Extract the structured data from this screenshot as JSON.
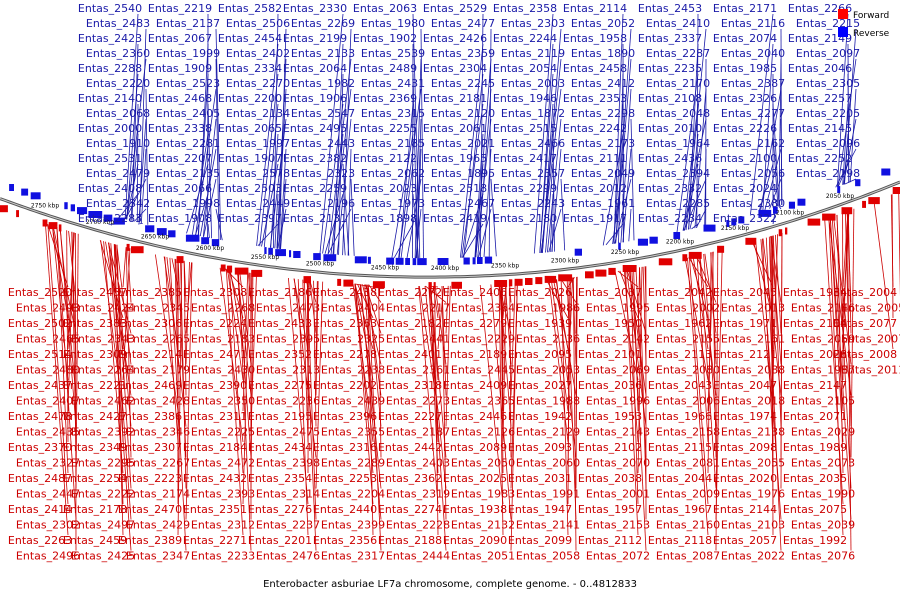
{
  "caption": "Enterobacter asburiae LF7a chromosome, complete genome. - 0..4812833",
  "legend": [
    {
      "label": "Forward",
      "color": "#ff0000"
    },
    {
      "label": "Reverse",
      "color": "#0000ff"
    }
  ],
  "colors": {
    "forward": "#e00000",
    "reverse": "#1010e0",
    "label_forward": "#cc0000",
    "label_reverse": "#1a1aa8"
  },
  "ticks": [
    "2750 kbp",
    "2700 kbp",
    "2650 kbp",
    "2600 kbp",
    "2550 kbp",
    "2500 kbp",
    "2450 kbp",
    "2400 kbp",
    "2350 kbp",
    "2300 kbp",
    "2250 kbp",
    "2200 kbp",
    "2150 kbp",
    "2100 kbp",
    "2050 kbp"
  ],
  "reverse_labels": [
    "Entas_2540",
    "Entas_2483",
    "Entas_2423",
    "Entas_2360",
    "Entas_2288",
    "Entas_2220",
    "Entas_2140",
    "Entas_2068",
    "Entas_2000",
    "Entas_1910",
    "Entas_2531",
    "Entas_2479",
    "Entas_2408",
    "Entas_2342",
    "Entas_2283",
    "Entas_2219",
    "Entas_2137",
    "Entas_2067",
    "Entas_1999",
    "Entas_1909",
    "Entas_2523",
    "Entas_2468",
    "Entas_2405",
    "Entas_2338",
    "Entas_2281",
    "Entas_2207",
    "Entas_2135",
    "Entas_2066",
    "Entas_1998",
    "Entas_1908",
    "Entas_2582",
    "Entas_2506",
    "Entas_2454",
    "Entas_2402",
    "Entas_2334",
    "Entas_2270",
    "Entas_2200",
    "Entas_2134",
    "Entas_2065",
    "Entas_1997",
    "Entas_1907",
    "Entas_2578",
    "Entas_2503",
    "Entas_2449",
    "Entas_2397",
    "Entas_2330",
    "Entas_2269",
    "Entas_2199",
    "Entas_2133",
    "Entas_2064",
    "Entas_1982",
    "Entas_1906",
    "Entas_2547",
    "Entas_2495",
    "Entas_2443",
    "Entas_2382",
    "Entas_2323",
    "Entas_2259",
    "Entas_2196",
    "Entas_2131",
    "Entas_2063",
    "Entas_1980",
    "Entas_1902",
    "Entas_2539",
    "Entas_2489",
    "Entas_2431",
    "Entas_2369",
    "Entas_2315",
    "Entas_2255",
    "Entas_2185",
    "Entas_2122",
    "Entas_2062",
    "Entas_2023",
    "Entas_1973",
    "Entas_1898",
    "Entas_2529",
    "Entas_2477",
    "Entas_2426",
    "Entas_2359",
    "Entas_2304",
    "Entas_2245",
    "Entas_2181",
    "Entas_2120",
    "Entas_2061",
    "Entas_2021",
    "Entas_1965",
    "Entas_1895",
    "Entas_2518",
    "Entas_2467",
    "Entas_2419",
    "Entas_2358",
    "Entas_2303",
    "Entas_2244",
    "Entas_2119",
    "Entas_2054",
    "Entas_2003",
    "Entas_1946",
    "Entas_1872",
    "Entas_2515",
    "Entas_2466",
    "Entas_2417",
    "Entas_2357",
    "Entas_2299",
    "Entas_2243",
    "Entas_2180",
    "Entas_2114",
    "Entas_2052",
    "Entas_1958",
    "Entas_1890",
    "Entas_2458",
    "Entas_2412",
    "Entas_2353",
    "Entas_2298",
    "Entas_2242",
    "Entas_2173",
    "Entas_2111",
    "Entas_2049",
    "Entas_2012",
    "Entas_1961",
    "Entas_1917",
    "Entas_2453",
    "Entas_2410",
    "Entas_2337",
    "Entas_2287",
    "Entas_2235",
    "Entas_2170",
    "Entas_2108",
    "Entas_2048",
    "Entas_2010",
    "Entas_1964",
    "Entas_2436",
    "Entas_2394",
    "Entas_2332",
    "Entas_2285",
    "Entas_2234",
    "Entas_2171",
    "Entas_2116",
    "Entas_2074",
    "Entas_2040",
    "Entas_1985",
    "Entas_2387",
    "Entas_2326",
    "Entas_2277",
    "Entas_2226",
    "Entas_2162",
    "Entas_2100",
    "Entas_2056",
    "Entas_2024",
    "Entas_2380",
    "Entas_2322",
    "Entas_2266",
    "Entas_2215",
    "Entas_2149",
    "Entas_2097",
    "Entas_2046",
    "Entas_2305",
    "Entas_2257",
    "Entas_2205",
    "Entas_2145",
    "Entas_2096",
    "Entas_2252",
    "Entas_2198"
  ],
  "forward_labels": [
    "Entas_2520",
    "Entas_2493",
    "Entas_2502",
    "Entas_2465",
    "Entas_2514",
    "Entas_2480",
    "Entas_2437",
    "Entas_2407",
    "Entas_2478",
    "Entas_2435",
    "Entas_2370",
    "Entas_2327",
    "Entas_2487",
    "Entas_2447",
    "Entas_2414",
    "Entas_2302",
    "Entas_2263",
    "Entas_2496",
    "Entas_2457",
    "Entas_2424",
    "Entas_2383",
    "Entas_2343",
    "Entas_2309",
    "Entas_2264",
    "Entas_2221",
    "Entas_2462",
    "Entas_2427",
    "Entas_2392",
    "Entas_2349",
    "Entas_2295",
    "Entas_2254",
    "Entas_2222",
    "Entas_2178",
    "Entas_2497",
    "Entas_2459",
    "Entas_2425",
    "Entas_2385",
    "Entas_2345",
    "Entas_2306",
    "Entas_2265",
    "Entas_2214",
    "Entas_2179",
    "Entas_2469",
    "Entas_2428",
    "Entas_2386",
    "Entas_2346",
    "Entas_2307",
    "Entas_2267",
    "Entas_2223",
    "Entas_2174",
    "Entas_2470",
    "Entas_2429",
    "Entas_2389",
    "Entas_2347",
    "Entas_2308",
    "Entas_2268",
    "Entas_2224",
    "Entas_2183",
    "Entas_2471",
    "Entas_2430",
    "Entas_2390",
    "Entas_2350",
    "Entas_2311",
    "Entas_2225",
    "Entas_2184",
    "Entas_2472",
    "Entas_2432",
    "Entas_2393",
    "Entas_2351",
    "Entas_2312",
    "Entas_2271",
    "Entas_2233",
    "Entas_2186",
    "Entas_2473",
    "Entas_2433",
    "Entas_2395",
    "Entas_2352",
    "Entas_2313",
    "Entas_2275",
    "Entas_2236",
    "Entas_2195",
    "Entas_2475",
    "Entas_2434",
    "Entas_2398",
    "Entas_2354",
    "Entas_2314",
    "Entas_2276",
    "Entas_2237",
    "Entas_2201",
    "Entas_2476",
    "Entas_2438",
    "Entas_2404",
    "Entas_2363",
    "Entas_2325",
    "Entas_2278",
    "Entas_2238",
    "Entas_2202",
    "Entas_2439",
    "Entas_2396",
    "Entas_2355",
    "Entas_2316",
    "Entas_2289",
    "Entas_2253",
    "Entas_2204",
    "Entas_2440",
    "Entas_2399",
    "Entas_2356",
    "Entas_2317",
    "Entas_2272",
    "Entas_2217",
    "Entas_2182",
    "Entas_2441",
    "Entas_2401",
    "Entas_2361",
    "Entas_2318",
    "Entas_2273",
    "Entas_2227",
    "Entas_2187",
    "Entas_2442",
    "Entas_2403",
    "Entas_2362",
    "Entas_2319",
    "Entas_2274",
    "Entas_2228",
    "Entas_2188",
    "Entas_2444",
    "Entas_2406",
    "Entas_2364",
    "Entas_2279",
    "Entas_2229",
    "Entas_2189",
    "Entas_2445",
    "Entas_2409",
    "Entas_2365",
    "Entas_2446",
    "Entas_2126",
    "Entas_2089",
    "Entas_2050",
    "Entas_2025",
    "Entas_1983",
    "Entas_1938",
    "Entas_2132",
    "Entas_2090",
    "Entas_2051",
    "Entas_2026",
    "Entas_1986",
    "Entas_1939",
    "Entas_2136",
    "Entas_2095",
    "Entas_2053",
    "Entas_2027",
    "Entas_1988",
    "Entas_1942",
    "Entas_2129",
    "Entas_2093",
    "Entas_2060",
    "Entas_2031",
    "Entas_1991",
    "Entas_1947",
    "Entas_2141",
    "Entas_2099",
    "Entas_2058",
    "Entas_2037",
    "Entas_1995",
    "Entas_1950",
    "Entas_2142",
    "Entas_2101",
    "Entas_2069",
    "Entas_2036",
    "Entas_1996",
    "Entas_1953",
    "Entas_2143",
    "Entas_2102",
    "Entas_2070",
    "Entas_2038",
    "Entas_2001",
    "Entas_1957",
    "Entas_2153",
    "Entas_2112",
    "Entas_2072",
    "Entas_2042",
    "Entas_2002",
    "Entas_1962",
    "Entas_2155",
    "Entas_2113",
    "Entas_2080",
    "Entas_2043",
    "Entas_2006",
    "Entas_1966",
    "Entas_2158",
    "Entas_2115",
    "Entas_2081",
    "Entas_2044",
    "Entas_2009",
    "Entas_1967",
    "Entas_2160",
    "Entas_2118",
    "Entas_2087",
    "Entas_2045",
    "Entas_2013",
    "Entas_1971",
    "Entas_2161",
    "Entas_2121",
    "Entas_2088",
    "Entas_2047",
    "Entas_2018",
    "Entas_1974",
    "Entas_2138",
    "Entas_2098",
    "Entas_2055",
    "Entas_2020",
    "Entas_1976",
    "Entas_2144",
    "Entas_2103",
    "Entas_2057",
    "Entas_2022",
    "Entas_1984",
    "Entas_2146",
    "Entas_2104",
    "Entas_2059",
    "Entas_2028",
    "Entas_1987",
    "Entas_2147",
    "Entas_2105",
    "Entas_2071",
    "Entas_2029",
    "Entas_1989",
    "Entas_2073",
    "Entas_2035",
    "Entas_1990",
    "Entas_2075",
    "Entas_2039",
    "Entas_1992",
    "Entas_2076",
    "Entas_2004",
    "Entas_2005",
    "Entas_2077",
    "Entas_2007",
    "Entas_2008",
    "Entas_2011"
  ]
}
